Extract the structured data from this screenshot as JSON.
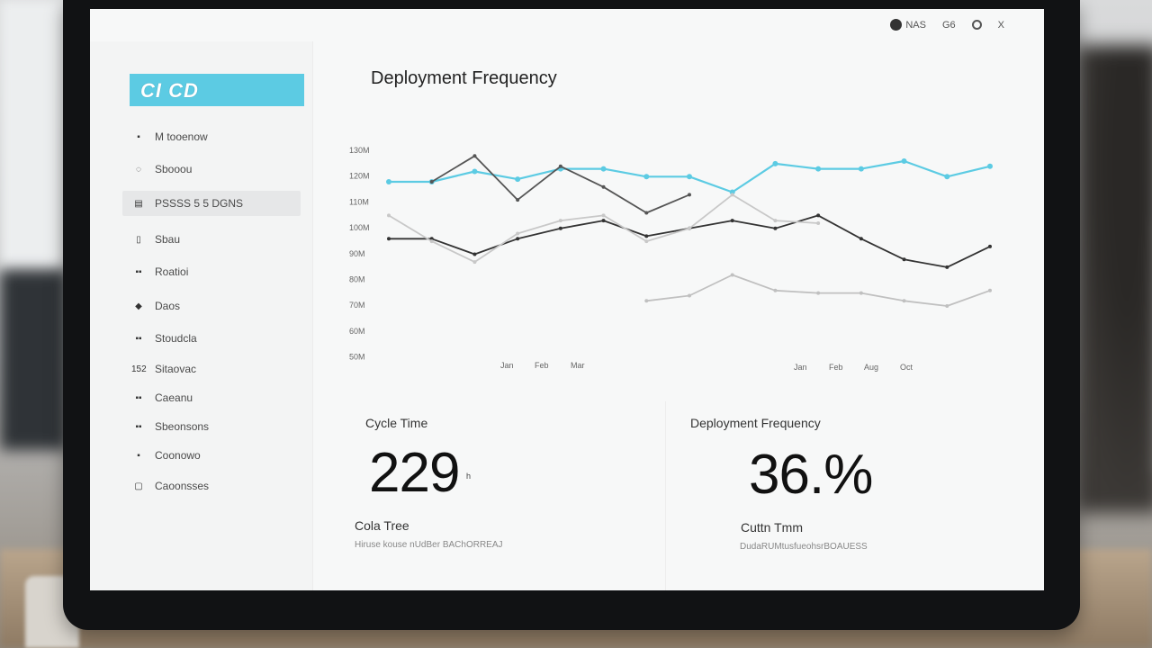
{
  "topbar": {
    "icons": [
      {
        "name": "user-icon",
        "label": "NAS"
      },
      {
        "name": "help-icon",
        "label": "G6"
      },
      {
        "name": "settings-icon",
        "label": "G"
      },
      {
        "name": "close-icon",
        "label": "X"
      }
    ]
  },
  "sidebar": {
    "logo": "CI CD",
    "items": [
      {
        "icon": "dashboard-icon",
        "icon_glyph": "▪",
        "label": "M tooenow"
      },
      {
        "icon": "deploy-icon",
        "icon_glyph": "◌",
        "label": "Sbooou"
      },
      {
        "icon": "list-icon",
        "icon_glyph": "▤",
        "label": "PSSSS 5 5 DGNS",
        "active": true
      },
      {
        "icon": "box-icon",
        "icon_glyph": "▯",
        "label": "Sbau"
      },
      {
        "icon": "group-icon",
        "icon_glyph": "▪▪",
        "label": "Roatioi"
      },
      {
        "icon": "pin-icon",
        "icon_glyph": "◆",
        "label": "Daos"
      },
      {
        "icon": "chart-icon",
        "icon_glyph": "▪▪",
        "label": "Stoudcla"
      },
      {
        "icon": "code-icon",
        "icon_glyph": "152",
        "label": "Sitaovac"
      },
      {
        "icon": "users-icon",
        "icon_glyph": "▪▪",
        "label": "Caeanu"
      },
      {
        "icon": "server-icon",
        "icon_glyph": "▪▪",
        "label": "Sbeonsons"
      },
      {
        "icon": "tag-icon",
        "icon_glyph": "▪",
        "label": "Coonowo"
      },
      {
        "icon": "folder-icon",
        "icon_glyph": "▢",
        "label": "Caoonsses"
      }
    ]
  },
  "main": {
    "title": "Deployment Frequency"
  },
  "chart_data": {
    "type": "line",
    "title": "Deployment Frequency",
    "y_ticks": [
      "130M",
      "120M",
      "110M",
      "100M",
      "90M",
      "80M",
      "70M",
      "60M",
      "50M"
    ],
    "x_ticks_left": [
      "Jan",
      "Feb",
      "Mar"
    ],
    "x_ticks_right": [
      "Jan",
      "Feb",
      "Aug",
      "Oct"
    ],
    "ylim": [
      50,
      130
    ],
    "x": [
      0,
      1,
      2,
      3,
      4,
      5,
      6,
      7,
      8,
      9,
      10,
      11,
      12,
      13,
      14
    ],
    "series": [
      {
        "color": "#5ccbe3",
        "values": [
          114,
          114,
          118,
          115,
          119,
          119,
          116,
          116,
          110,
          121,
          119,
          119,
          122,
          116,
          120
        ]
      },
      {
        "color": "#555555",
        "values": [
          null,
          114,
          124,
          107,
          120,
          112,
          102,
          109,
          null,
          null,
          null,
          null,
          null,
          null,
          null
        ]
      },
      {
        "color": "#333333",
        "values": [
          92,
          92,
          86,
          92,
          96,
          99,
          93,
          96,
          99,
          96,
          101,
          92,
          84,
          81,
          89
        ]
      },
      {
        "color": "#c8c8c8",
        "values": [
          101,
          91,
          83,
          94,
          99,
          101,
          91,
          96,
          109,
          99,
          98,
          null,
          null,
          null,
          null
        ]
      },
      {
        "color": "#c0c0c0",
        "values": [
          null,
          null,
          null,
          null,
          null,
          null,
          68,
          70,
          78,
          72,
          71,
          71,
          68,
          66,
          72
        ]
      }
    ]
  },
  "cards": {
    "left": {
      "title": "Cycle Time",
      "value": "229",
      "unit": "h",
      "subtitle": "Cola Tree",
      "note": "Hiruse kouse nUdBer BAChORREAJ"
    },
    "right": {
      "title": "Deployment Frequency",
      "value": "36.%",
      "subtitle": "Cuttn Tmm",
      "note": "DudaRUMtusfueohsrBOAUESS"
    }
  }
}
